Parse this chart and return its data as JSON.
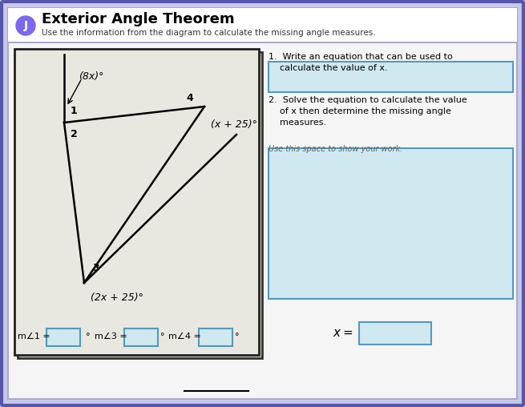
{
  "title": "Exterior Angle Theorem",
  "subtitle": "Use the information from the diagram to calculate the missing angle measures.",
  "circle_label": "J",
  "circle_color": "#7B68EE",
  "bg_outer": "#c8c8e8",
  "bg_inner": "#f0f0f0",
  "bg_diagram": "#e8e8e0",
  "border_color": "#5555aa",
  "diagram_border": "#222222",
  "q1_text": "1.  Write an equation that can be used to\n    calculate the value of x.",
  "q2_text": "2.  Solve the equation to calculate the value\n    of x then determine the missing angle\n    measures.",
  "work_label": "Use this space to show your work.",
  "angle_8x": "(8x)°",
  "angle_x25": "(x + 25)°",
  "angle_2x25": "(2x + 25)°",
  "label_1": "1",
  "label_2": "2",
  "label_3": "3",
  "label_4": "4",
  "bottom_text": "m∠1 =",
  "bottom_text2": "m∠3 =",
  "bottom_text3": "m∠4 =",
  "bottom_xeq": "x =",
  "box_color": "#d0e8f0",
  "box_border": "#5599bb",
  "answer_line": "_",
  "header_bg": "#ffffff"
}
